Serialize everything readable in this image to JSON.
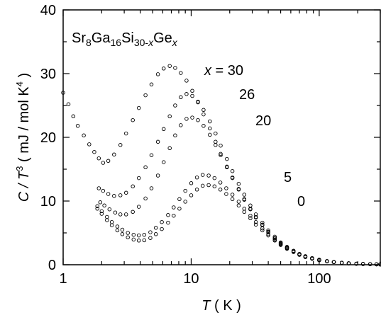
{
  "chart_data": {
    "type": "scatter",
    "title": "",
    "ylabel": {
      "pre": "C / T",
      "sup": "3",
      "post": " ( mJ / mol K",
      "sup2": "4",
      "end": " )"
    },
    "xlabel": {
      "italic": "T",
      "rest": " ( K )"
    },
    "x_scale": "log",
    "xlim": [
      1,
      300
    ],
    "ylim": [
      0,
      40
    ],
    "x_ticks": [
      {
        "value": 1,
        "label": "1"
      },
      {
        "value": 10,
        "label": "10"
      },
      {
        "value": 100,
        "label": "100"
      }
    ],
    "y_ticks": [
      {
        "value": 0,
        "label": "0"
      },
      {
        "value": 10,
        "label": "10"
      },
      {
        "value": 20,
        "label": "20"
      },
      {
        "value": 30,
        "label": "30"
      },
      {
        "value": 40,
        "label": "40"
      }
    ],
    "annotations": {
      "formula": {
        "p1": "Sr",
        "s1": "8",
        "p2": "Ga",
        "s2": "16",
        "p3": "Si",
        "s3": "30-",
        "s3i": "x",
        "p4": "Ge",
        "s4": "x"
      },
      "series_labels": [
        {
          "italic": "x",
          "text": " = 30",
          "series": "x = 30"
        },
        {
          "italic": "",
          "text": "26",
          "series": "x = 26"
        },
        {
          "italic": "",
          "text": "20",
          "series": "x = 20"
        },
        {
          "italic": "",
          "text": "5",
          "series": "x = 5"
        },
        {
          "italic": "",
          "text": "0",
          "series": "x = 0"
        }
      ]
    },
    "marker": "open-circle",
    "series": [
      {
        "name": "x = 30",
        "points": [
          [
            1.0,
            27
          ],
          [
            1.1,
            25.2
          ],
          [
            1.2,
            23.3
          ],
          [
            1.3,
            21.8
          ],
          [
            1.45,
            20.3
          ],
          [
            1.6,
            18.9
          ],
          [
            1.75,
            17.7
          ],
          [
            1.9,
            16.7
          ],
          [
            2.05,
            16.0
          ],
          [
            2.25,
            16.3
          ],
          [
            2.5,
            17.3
          ],
          [
            2.8,
            18.8
          ],
          [
            3.1,
            20.6
          ],
          [
            3.5,
            22.7
          ],
          [
            3.9,
            24.6
          ],
          [
            4.4,
            26.6
          ],
          [
            4.9,
            28.3
          ],
          [
            5.5,
            29.9
          ],
          [
            6.1,
            30.8
          ],
          [
            6.8,
            31.2
          ],
          [
            7.5,
            30.9
          ],
          [
            8.3,
            30.1
          ],
          [
            9.2,
            28.9
          ],
          [
            10.2,
            27.3
          ],
          [
            11.3,
            25.5
          ],
          [
            12.5,
            23.6
          ],
          [
            14,
            21.4
          ],
          [
            15.5,
            19.3
          ],
          [
            17,
            17.4
          ],
          [
            19,
            15.4
          ],
          [
            21,
            13.7
          ],
          [
            23.5,
            11.9
          ],
          [
            26,
            10.3
          ],
          [
            29,
            8.8
          ],
          [
            32,
            7.5
          ],
          [
            36,
            6.3
          ],
          [
            40,
            5.2
          ],
          [
            45,
            4.2
          ],
          [
            50,
            3.4
          ],
          [
            56,
            2.7
          ],
          [
            63,
            2.1
          ],
          [
            70,
            1.65
          ],
          [
            78,
            1.3
          ],
          [
            88,
            1.0
          ],
          [
            100,
            0.75
          ],
          [
            115,
            0.55
          ],
          [
            130,
            0.42
          ],
          [
            150,
            0.3
          ],
          [
            170,
            0.22
          ],
          [
            195,
            0.16
          ],
          [
            220,
            0.12
          ],
          [
            250,
            0.09
          ],
          [
            280,
            0.07
          ],
          [
            300,
            0.06
          ]
        ]
      },
      {
        "name": "x = 26",
        "points": [
          [
            1.9,
            12.0
          ],
          [
            2.05,
            11.6
          ],
          [
            2.25,
            11.1
          ],
          [
            2.5,
            10.8
          ],
          [
            2.8,
            10.9
          ],
          [
            3.1,
            11.3
          ],
          [
            3.5,
            12.3
          ],
          [
            3.9,
            13.6
          ],
          [
            4.4,
            15.3
          ],
          [
            4.9,
            17.2
          ],
          [
            5.5,
            19.3
          ],
          [
            6.1,
            21.3
          ],
          [
            6.8,
            23.3
          ],
          [
            7.5,
            25.0
          ],
          [
            8.3,
            26.3
          ],
          [
            9.2,
            26.8
          ],
          [
            10.2,
            26.5
          ],
          [
            11.3,
            25.6
          ],
          [
            12.5,
            24.3
          ],
          [
            14,
            22.5
          ],
          [
            15.5,
            20.6
          ],
          [
            17,
            18.7
          ],
          [
            19,
            16.6
          ],
          [
            21,
            14.7
          ],
          [
            23.5,
            12.7
          ],
          [
            26,
            11.0
          ],
          [
            29,
            9.3
          ],
          [
            32,
            7.9
          ],
          [
            36,
            6.6
          ],
          [
            40,
            5.4
          ],
          [
            45,
            4.4
          ],
          [
            50,
            3.5
          ],
          [
            56,
            2.8
          ],
          [
            63,
            2.2
          ],
          [
            70,
            1.7
          ],
          [
            78,
            1.35
          ],
          [
            88,
            1.05
          ],
          [
            100,
            0.8
          ],
          [
            115,
            0.58
          ],
          [
            130,
            0.44
          ],
          [
            150,
            0.32
          ],
          [
            170,
            0.23
          ],
          [
            195,
            0.17
          ],
          [
            220,
            0.13
          ],
          [
            250,
            0.1
          ],
          [
            280,
            0.07
          ],
          [
            300,
            0.06
          ]
        ]
      },
      {
        "name": "x = 20",
        "points": [
          [
            1.95,
            9.8
          ],
          [
            2.1,
            9.3
          ],
          [
            2.3,
            8.7
          ],
          [
            2.55,
            8.2
          ],
          [
            2.8,
            7.9
          ],
          [
            3.1,
            7.9
          ],
          [
            3.5,
            8.3
          ],
          [
            3.9,
            9.1
          ],
          [
            4.4,
            10.4
          ],
          [
            4.9,
            12.0
          ],
          [
            5.5,
            14.0
          ],
          [
            6.1,
            16.1
          ],
          [
            6.8,
            18.3
          ],
          [
            7.5,
            20.3
          ],
          [
            8.3,
            21.9
          ],
          [
            9.2,
            22.9
          ],
          [
            10.2,
            23.1
          ],
          [
            11.3,
            22.7
          ],
          [
            12.5,
            21.8
          ],
          [
            14,
            20.4
          ],
          [
            15.5,
            18.8
          ],
          [
            17,
            17.2
          ],
          [
            19,
            15.3
          ],
          [
            21,
            13.6
          ],
          [
            23.5,
            11.8
          ],
          [
            26,
            10.2
          ],
          [
            29,
            8.7
          ],
          [
            32,
            7.4
          ],
          [
            36,
            6.2
          ],
          [
            40,
            5.1
          ],
          [
            45,
            4.1
          ],
          [
            50,
            3.3
          ],
          [
            56,
            2.65
          ],
          [
            63,
            2.1
          ],
          [
            70,
            1.65
          ],
          [
            78,
            1.3
          ],
          [
            88,
            1.0
          ],
          [
            100,
            0.75
          ],
          [
            115,
            0.55
          ],
          [
            130,
            0.42
          ],
          [
            150,
            0.3
          ],
          [
            170,
            0.22
          ],
          [
            195,
            0.16
          ],
          [
            220,
            0.12
          ],
          [
            250,
            0.09
          ],
          [
            280,
            0.07
          ],
          [
            300,
            0.06
          ]
        ]
      },
      {
        "name": "x = 5",
        "points": [
          [
            1.85,
            9.2
          ],
          [
            2.0,
            8.4
          ],
          [
            2.2,
            7.5
          ],
          [
            2.4,
            6.7
          ],
          [
            2.65,
            6.0
          ],
          [
            2.9,
            5.5
          ],
          [
            3.2,
            5.0
          ],
          [
            3.55,
            4.7
          ],
          [
            3.9,
            4.6
          ],
          [
            4.3,
            4.7
          ],
          [
            4.8,
            5.1
          ],
          [
            5.3,
            5.8
          ],
          [
            5.9,
            6.7
          ],
          [
            6.6,
            7.8
          ],
          [
            7.3,
            9.0
          ],
          [
            8.1,
            10.3
          ],
          [
            9.0,
            11.6
          ],
          [
            10,
            12.8
          ],
          [
            11.1,
            13.7
          ],
          [
            12.3,
            14.1
          ],
          [
            13.7,
            14.0
          ],
          [
            15.2,
            13.6
          ],
          [
            16.9,
            12.9
          ],
          [
            18.8,
            12.0
          ],
          [
            21,
            11.0
          ],
          [
            23.5,
            9.9
          ],
          [
            26,
            8.8
          ],
          [
            29,
            7.7
          ],
          [
            32,
            6.7
          ],
          [
            36,
            5.7
          ],
          [
            40,
            4.8
          ],
          [
            45,
            3.9
          ],
          [
            50,
            3.2
          ],
          [
            56,
            2.6
          ],
          [
            63,
            2.05
          ],
          [
            70,
            1.6
          ],
          [
            78,
            1.25
          ],
          [
            88,
            0.97
          ],
          [
            100,
            0.73
          ],
          [
            115,
            0.54
          ],
          [
            130,
            0.41
          ],
          [
            150,
            0.3
          ],
          [
            170,
            0.22
          ],
          [
            195,
            0.16
          ],
          [
            220,
            0.12
          ],
          [
            250,
            0.09
          ],
          [
            280,
            0.07
          ],
          [
            300,
            0.06
          ]
        ]
      },
      {
        "name": "x = 0",
        "points": [
          [
            1.85,
            8.8
          ],
          [
            2.0,
            8.0
          ],
          [
            2.2,
            7.0
          ],
          [
            2.4,
            6.2
          ],
          [
            2.65,
            5.4
          ],
          [
            2.9,
            4.8
          ],
          [
            3.2,
            4.3
          ],
          [
            3.55,
            3.95
          ],
          [
            3.9,
            3.8
          ],
          [
            4.3,
            3.85
          ],
          [
            4.8,
            4.2
          ],
          [
            5.3,
            4.8
          ],
          [
            5.9,
            5.6
          ],
          [
            6.6,
            6.6
          ],
          [
            7.3,
            7.7
          ],
          [
            8.1,
            8.8
          ],
          [
            9.0,
            9.9
          ],
          [
            10,
            10.9
          ],
          [
            11.1,
            11.8
          ],
          [
            12.3,
            12.4
          ],
          [
            13.7,
            12.5
          ],
          [
            15.2,
            12.3
          ],
          [
            16.9,
            11.8
          ],
          [
            18.8,
            11.1
          ],
          [
            21,
            10.3
          ],
          [
            23.5,
            9.3
          ],
          [
            26,
            8.3
          ],
          [
            29,
            7.3
          ],
          [
            32,
            6.3
          ],
          [
            36,
            5.4
          ],
          [
            40,
            4.6
          ],
          [
            45,
            3.8
          ],
          [
            50,
            3.1
          ],
          [
            56,
            2.5
          ],
          [
            63,
            2.0
          ],
          [
            70,
            1.55
          ],
          [
            78,
            1.2
          ],
          [
            88,
            0.93
          ],
          [
            100,
            0.7
          ],
          [
            115,
            0.52
          ],
          [
            130,
            0.4
          ],
          [
            150,
            0.29
          ],
          [
            170,
            0.21
          ],
          [
            195,
            0.15
          ],
          [
            220,
            0.11
          ],
          [
            250,
            0.085
          ],
          [
            280,
            0.065
          ],
          [
            300,
            0.055
          ]
        ]
      }
    ]
  }
}
